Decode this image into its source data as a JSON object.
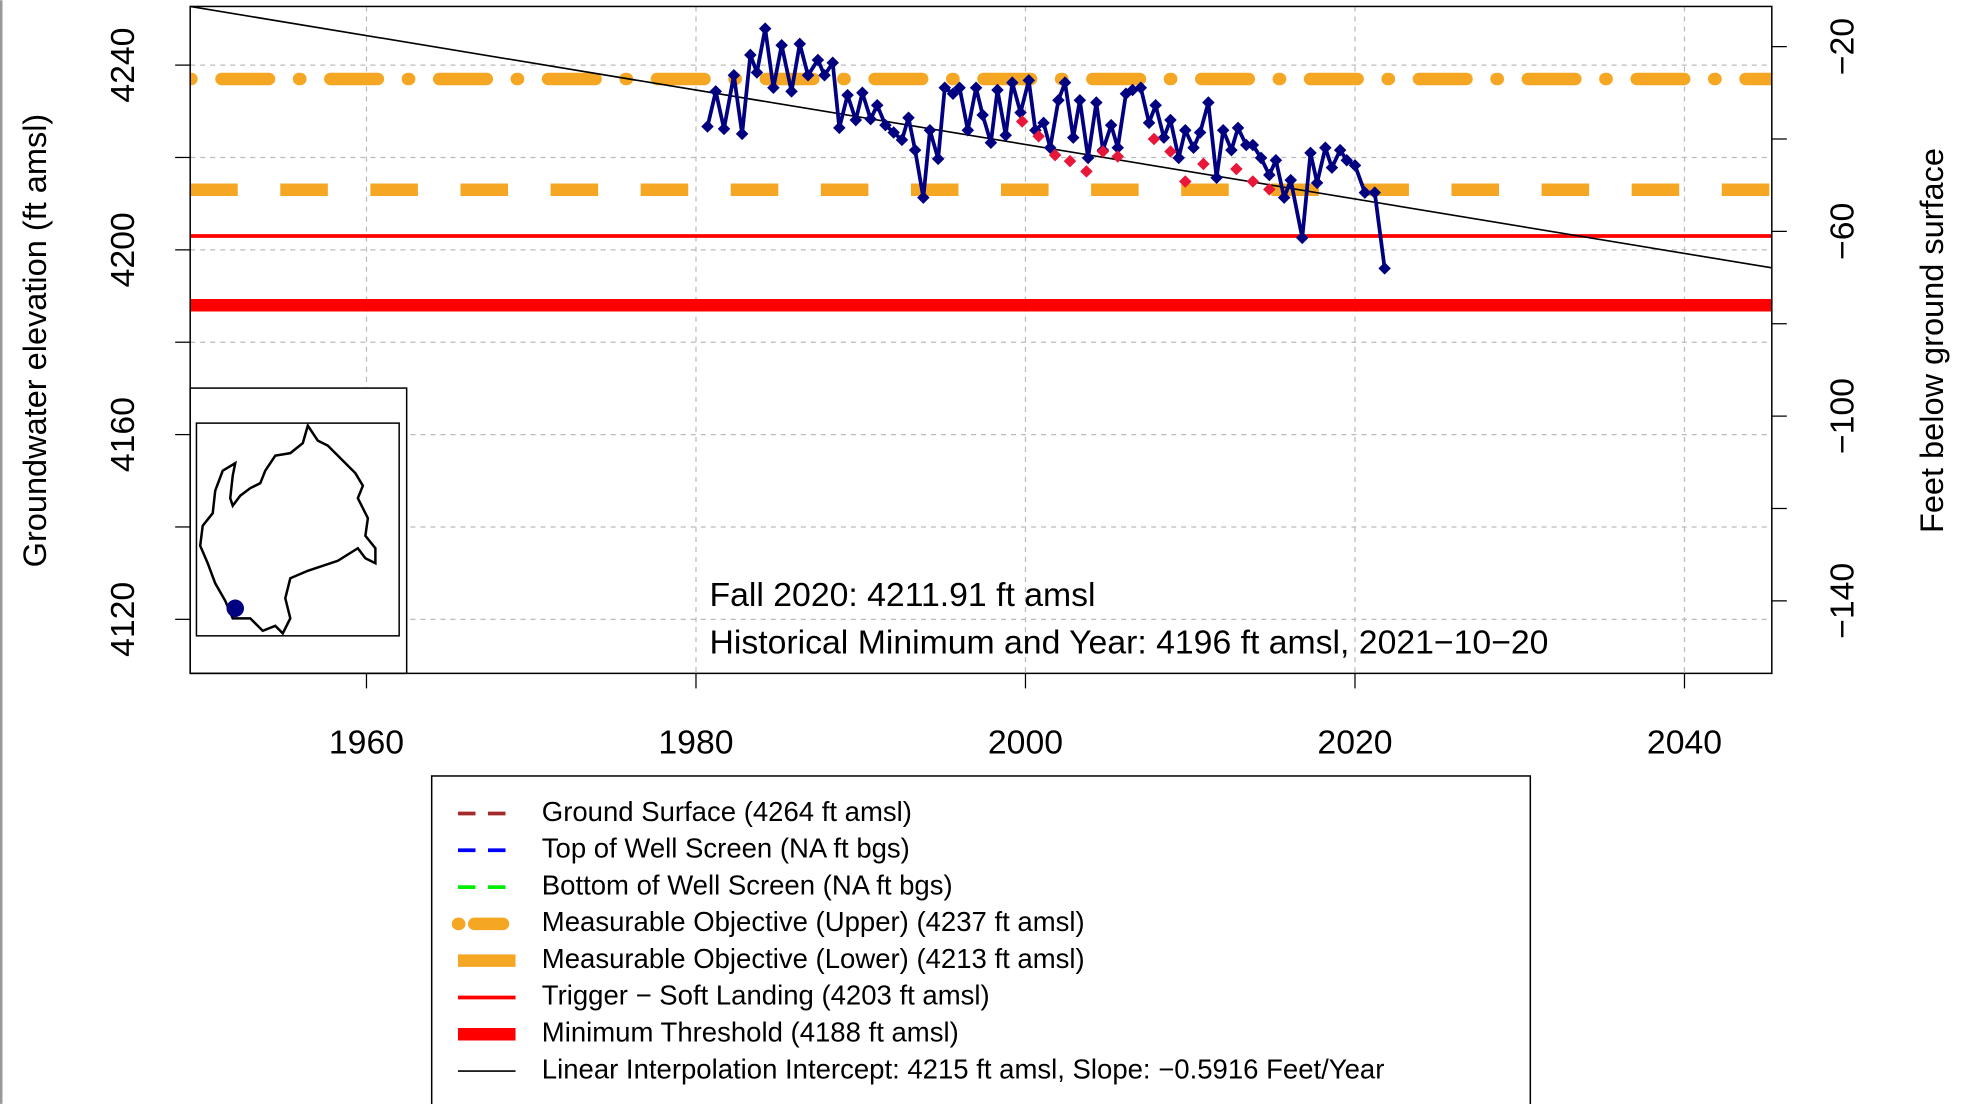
{
  "chart_data": {
    "type": "line",
    "y_label": "Groundwater elevation (ft amsl)",
    "y2_label": "Feet below ground surface",
    "xlim": [
      1949.3,
      2045.3
    ],
    "xticks": [
      1960,
      1980,
      2000,
      2020,
      2040
    ],
    "ylim": [
      4108.3,
      4252.7
    ],
    "yticks": [
      4120,
      4160,
      4200,
      4240
    ],
    "yminor_ticks": [
      4140,
      4180,
      4220
    ],
    "y2lim": [
      -155.7,
      -11.3
    ],
    "y2ticks": [
      {
        "value": -140,
        "label": "−140"
      },
      {
        "value": -100,
        "label": "−100"
      },
      {
        "value": -60,
        "label": "−60"
      },
      {
        "value": -20,
        "label": "−20"
      }
    ],
    "y2minor_ticks": [
      -120,
      -80,
      -40
    ],
    "grid": true,
    "series": [
      {
        "color": "#000080",
        "x": [
          1980.7,
          1981.2,
          1981.7,
          1982.3,
          1982.8,
          1983.3,
          1983.7,
          1984.2,
          1984.7,
          1985.2,
          1985.8,
          1986.3,
          1986.8,
          1987.4,
          1987.8,
          1988.3,
          1988.7,
          1989.2,
          1989.7,
          1990.1,
          1990.6,
          1991.0,
          1991.5,
          1992.0,
          1992.5,
          1992.9,
          1993.3,
          1993.8,
          1994.2,
          1994.7,
          1995.1,
          1995.6,
          1996.0,
          1996.5,
          1997.0,
          1997.4,
          1997.9,
          1998.3,
          1998.8,
          1999.2,
          1999.7,
          2000.2,
          2000.6,
          2001.1,
          2001.5,
          2002.0,
          2002.4,
          2002.9,
          2003.3,
          2003.8,
          2004.3,
          2004.7,
          2005.2,
          2005.6,
          2006.1,
          2006.5,
          2007.0,
          2007.5,
          2007.9,
          2008.4,
          2008.8,
          2009.3,
          2009.7,
          2010.2,
          2010.6,
          2011.1,
          2011.6,
          2012.0,
          2012.5,
          2012.9,
          2013.4,
          2013.8,
          2014.3,
          2014.8,
          2015.2,
          2015.7,
          2016.1,
          2016.8,
          2017.3,
          2017.7,
          2018.2,
          2018.6,
          2019.1,
          2019.5,
          2020.0,
          2020.6,
          2021.2,
          2021.8
        ],
        "values": [
          4226.7,
          4234.3,
          4226.2,
          4237.8,
          4225.1,
          4242.2,
          4238.4,
          4247.9,
          4235.1,
          4244.3,
          4234.3,
          4244.6,
          4237.8,
          4241.1,
          4237.8,
          4240.5,
          4226.4,
          4233.5,
          4228.1,
          4234.0,
          4228.3,
          4231.3,
          4227.0,
          4225.4,
          4223.8,
          4228.6,
          4221.6,
          4211.3,
          4225.9,
          4219.7,
          4235.1,
          4233.8,
          4235.1,
          4225.9,
          4235.1,
          4229.2,
          4223.2,
          4234.6,
          4224.8,
          4236.2,
          4229.7,
          4236.7,
          4225.9,
          4227.5,
          4222.1,
          4232.4,
          4236.2,
          4224.3,
          4232.4,
          4219.9,
          4231.9,
          4221.6,
          4227.0,
          4222.1,
          4233.8,
          4234.6,
          4235.1,
          4227.5,
          4231.3,
          4224.3,
          4228.1,
          4219.9,
          4225.9,
          4222.1,
          4225.4,
          4231.9,
          4215.6,
          4225.9,
          4221.6,
          4226.4,
          4222.7,
          4222.7,
          4219.9,
          4216.2,
          4219.4,
          4211.3,
          4215.1,
          4202.6,
          4221.0,
          4214.5,
          4222.1,
          4217.8,
          4221.6,
          4219.4,
          4218.3,
          4212.4,
          4212.4,
          4196.0
        ]
      },
      {
        "color": "#e8173a",
        "x": [
          1999.8,
          2000.8,
          2001.8,
          2002.7,
          2003.7,
          2004.7,
          2005.6,
          2007.8,
          2008.8,
          2009.7,
          2010.8,
          2012.8,
          2013.8,
          2014.8
        ],
        "values": [
          4227.8,
          4224.6,
          4220.5,
          4219.2,
          4217.0,
          4221.3,
          4220.2,
          4224.0,
          4221.3,
          4214.8,
          4218.6,
          4217.5,
          4214.8,
          4213.1
        ]
      }
    ],
    "reference_lines": [
      {
        "name": "Ground Surface (4264 ft amsl)",
        "value": 4264,
        "color": "#a52a2a",
        "style": "dashed",
        "width": 3
      },
      {
        "name": "Top of Well Screen (NA ft bgs)",
        "value": null,
        "color": "#0000ff",
        "style": "dashed",
        "width": 3
      },
      {
        "name": "Bottom of Well Screen (NA ft bgs)",
        "value": null,
        "color": "#00ee00",
        "style": "dashed",
        "width": 3
      },
      {
        "name": "Measurable Objective (Upper) (4237 ft amsl)",
        "value": 4237,
        "color": "#f5a623",
        "style": "dotdash",
        "width": 10
      },
      {
        "name": "Measurable Objective (Lower) (4213 ft amsl)",
        "value": 4213,
        "color": "#f5a623",
        "style": "longdash",
        "width": 10
      },
      {
        "name": "Trigger − Soft Landing (4203 ft amsl)",
        "value": 4203,
        "color": "#ff0000",
        "style": "solid",
        "width": 3
      },
      {
        "name": "Minimum Threshold (4188 ft amsl)",
        "value": 4188,
        "color": "#ff0000",
        "style": "solid",
        "width": 10
      }
    ],
    "trend": {
      "name": "Linear Interpolation Intercept: 4215 ft amsl, Slope: −0.5916 Feet/Year",
      "color": "#000000",
      "x": [
        1949.3,
        2045.3
      ],
      "values": [
        4252.7,
        4196.1
      ]
    },
    "annotations": [
      "Fall 2020:  4211.91 ft amsl",
      "Historical Minimum and Year:  4196 ft amsl,  2021−10−20"
    ]
  }
}
